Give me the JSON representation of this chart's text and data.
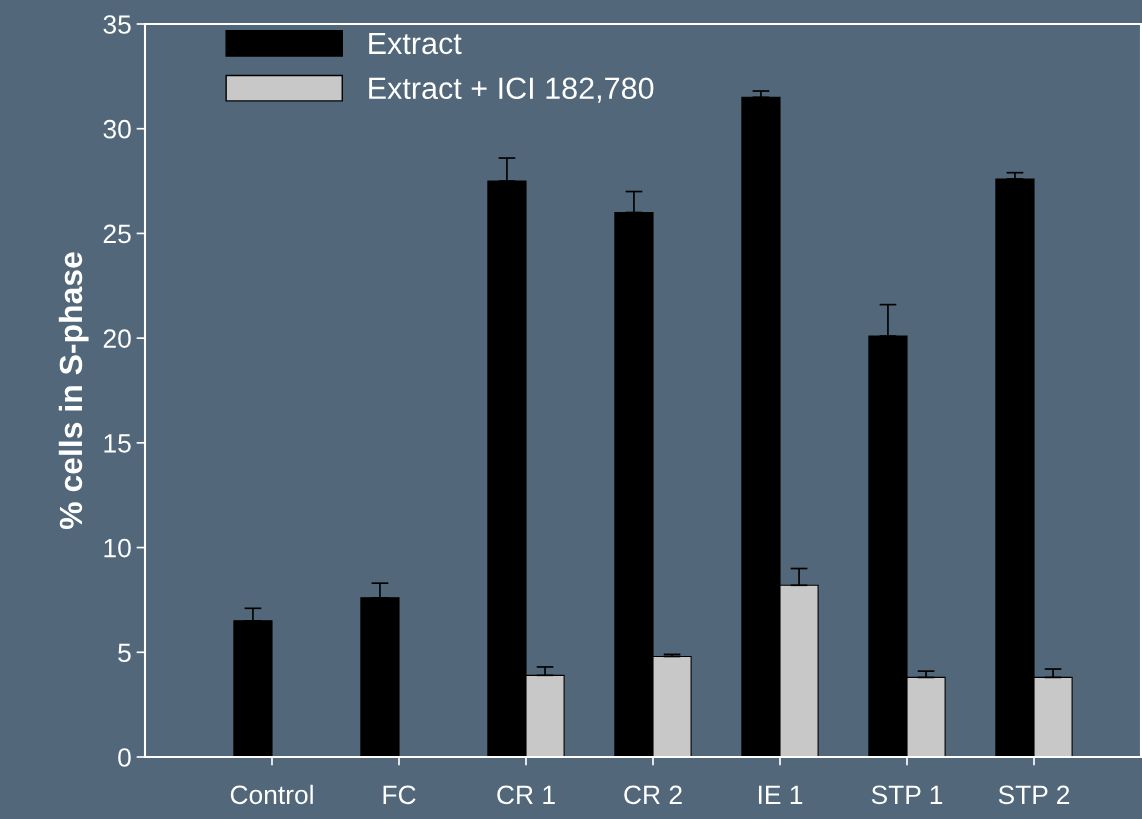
{
  "chart_data": {
    "type": "bar",
    "ylabel": "% cells in S-phase",
    "categories": [
      "Control",
      "FC",
      "CR 1",
      "CR 2",
      "IE 1",
      "STP 1",
      "STP 2"
    ],
    "series": [
      {
        "name": "Extract",
        "color": "#000000",
        "values": [
          6.5,
          7.6,
          27.5,
          26.0,
          31.5,
          20.1,
          27.6
        ],
        "errors": [
          [
            6.5,
            7.1
          ],
          [
            7.6,
            8.3
          ],
          [
            27.5,
            28.6
          ],
          [
            26.0,
            27.0
          ],
          [
            31.5,
            31.8
          ],
          [
            20.1,
            21.6
          ],
          [
            27.6,
            27.9
          ]
        ]
      },
      {
        "name": "Extract + ICI 182,780",
        "color": "#c8c8c8",
        "values": [
          null,
          null,
          3.9,
          4.8,
          8.2,
          3.8,
          3.8
        ],
        "errors": [
          null,
          null,
          [
            3.9,
            4.3
          ],
          [
            4.8,
            4.9
          ],
          [
            8.2,
            9.0
          ],
          [
            3.8,
            4.1
          ],
          [
            3.8,
            4.2
          ]
        ]
      }
    ],
    "ylim": [
      0,
      35
    ],
    "yticks": [
      0,
      5,
      10,
      15,
      20,
      25,
      30,
      35
    ],
    "legend": "top left",
    "grid": false
  }
}
